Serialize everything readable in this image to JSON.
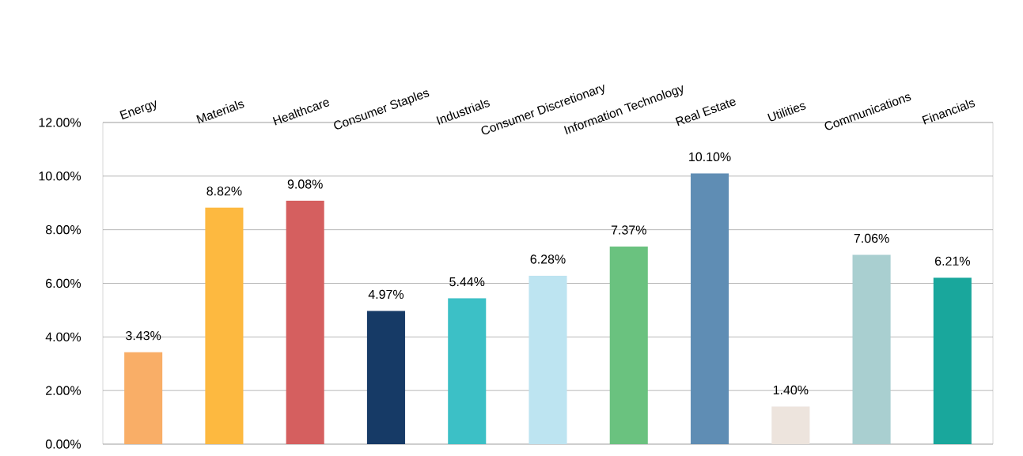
{
  "chart_data": {
    "type": "bar",
    "categories": [
      "Energy",
      "Materials",
      "Healthcare",
      "Consumer Staples",
      "Industrials",
      "Consumer Discretionary",
      "Information Technology",
      "Real Estate",
      "Utilities",
      "Communications",
      "Financials"
    ],
    "values": [
      3.43,
      8.82,
      9.08,
      4.97,
      5.44,
      6.28,
      7.37,
      10.1,
      1.4,
      7.06,
      6.21
    ],
    "value_labels": [
      "3.43%",
      "8.82%",
      "9.08%",
      "4.97%",
      "5.44%",
      "6.28%",
      "7.37%",
      "10.10%",
      "1.40%",
      "7.06%",
      "6.21%"
    ],
    "colors": [
      "#f9ae67",
      "#fdb940",
      "#d55f5f",
      "#163a66",
      "#3cc0c6",
      "#bde4f1",
      "#6ac27f",
      "#5f8db4",
      "#ede4dd",
      "#a9cfd0",
      "#19a79c"
    ],
    "ylim": [
      0,
      12
    ],
    "yticks": [
      {
        "value": 0,
        "label": "0.00%"
      },
      {
        "value": 2,
        "label": "2.00%"
      },
      {
        "value": 4,
        "label": "4.00%"
      },
      {
        "value": 6,
        "label": "6.00%"
      },
      {
        "value": 8,
        "label": "8.00%"
      },
      {
        "value": 10,
        "label": "10.00%"
      },
      {
        "value": 12,
        "label": "12.00%"
      }
    ],
    "grid": "y"
  }
}
